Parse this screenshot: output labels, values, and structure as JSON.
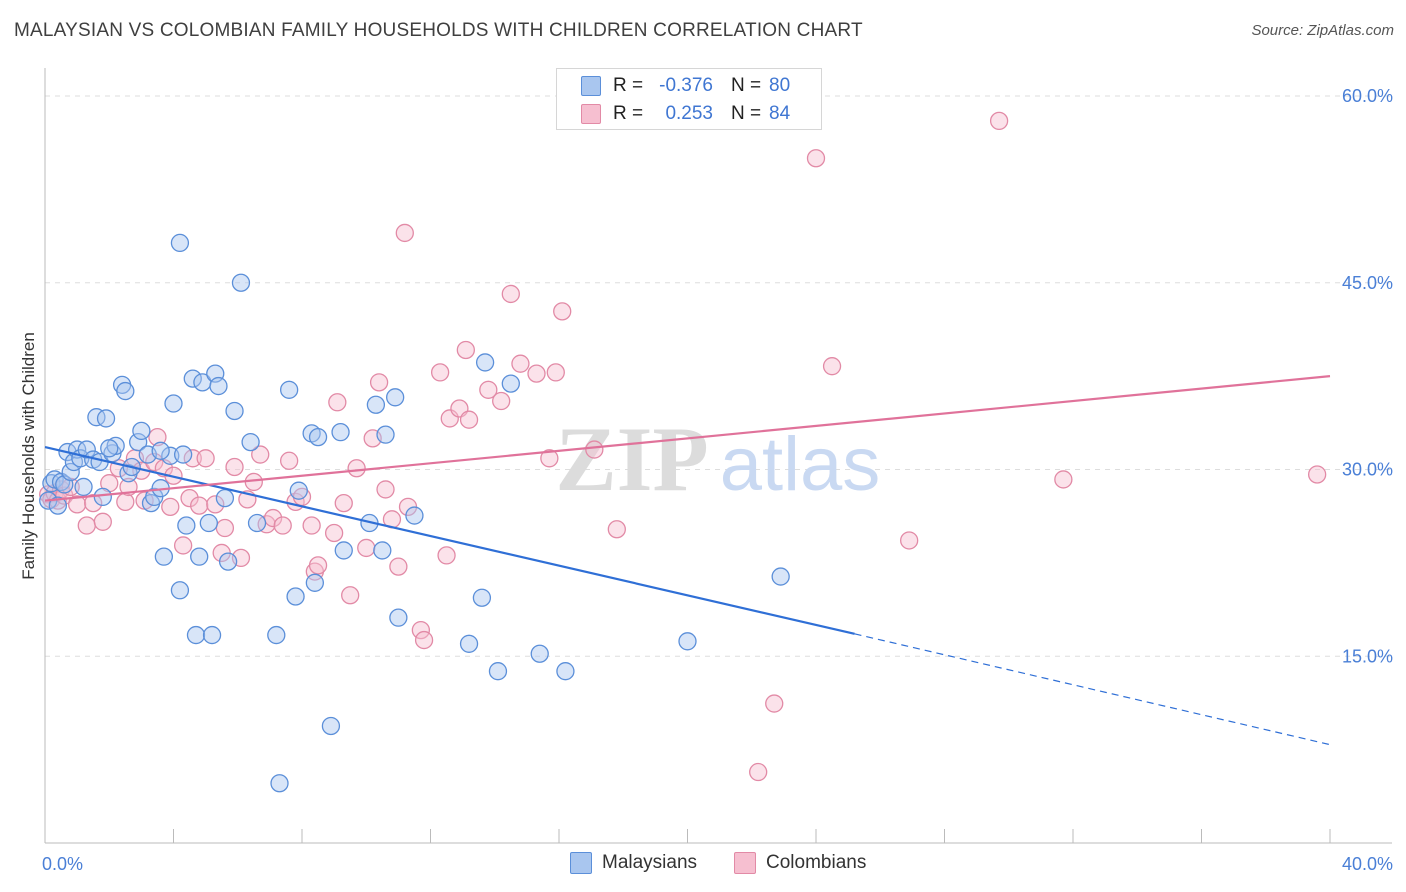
{
  "title": "MALAYSIAN VS COLOMBIAN FAMILY HOUSEHOLDS WITH CHILDREN CORRELATION CHART",
  "source": "Source: ZipAtlas.com",
  "watermark": {
    "zip": "ZIP",
    "atlas": "atlas"
  },
  "legend": {
    "rows": [
      {
        "r_label": "R =",
        "r_value": "-0.376",
        "n_label": "N =",
        "n_value": "80"
      },
      {
        "r_label": "R =",
        "r_value": "0.253",
        "n_label": "N =",
        "n_value": "84"
      }
    ]
  },
  "bottom_legend": {
    "malaysians": "Malaysians",
    "colombians": "Colombians"
  },
  "colors": {
    "malaysian_fill": "#a9c6ef",
    "malaysian_stroke": "#5b8fd9",
    "malaysian_line": "#2f6fd6",
    "colombian_fill": "#f6bfd0",
    "colombian_stroke": "#e28aa6",
    "colombian_line": "#e0729a",
    "tick_text": "#4a7fd6",
    "grid": "#dddddd"
  },
  "chart_data": {
    "type": "scatter",
    "title": "MALAYSIAN VS COLOMBIAN FAMILY HOUSEHOLDS WITH CHILDREN CORRELATION CHART",
    "xlabel": "",
    "ylabel": "Family Households with Children",
    "xlim": [
      0,
      40
    ],
    "ylim": [
      0,
      60
    ],
    "x_tick_labels": [
      "0.0%",
      "40.0%"
    ],
    "y_ticks": [
      15,
      30,
      45,
      60
    ],
    "y_tick_labels": [
      "15.0%",
      "30.0%",
      "45.0%",
      "60.0%"
    ],
    "grid": true,
    "legend_position": "top-center",
    "series": [
      {
        "name": "Malaysians",
        "r": -0.376,
        "n": 80,
        "trend": {
          "x0": 0,
          "y0": 31.8,
          "x1": 25.2,
          "y1": 16.8,
          "dash_to_x": 40,
          "dash_to_y": 7.9
        },
        "points": [
          [
            0.1,
            27.5
          ],
          [
            0.2,
            28.9
          ],
          [
            0.3,
            29.2
          ],
          [
            0.5,
            29.0
          ],
          [
            0.6,
            28.8
          ],
          [
            0.7,
            31.4
          ],
          [
            0.8,
            29.8
          ],
          [
            0.9,
            30.6
          ],
          [
            1.0,
            31.6
          ],
          [
            1.1,
            30.9
          ],
          [
            1.3,
            31.6
          ],
          [
            1.5,
            30.8
          ],
          [
            1.6,
            34.2
          ],
          [
            1.7,
            30.6
          ],
          [
            1.8,
            27.8
          ],
          [
            1.9,
            34.1
          ],
          [
            2.1,
            31.3
          ],
          [
            2.2,
            31.9
          ],
          [
            2.4,
            36.8
          ],
          [
            2.5,
            36.3
          ],
          [
            2.6,
            29.7
          ],
          [
            2.7,
            30.2
          ],
          [
            2.9,
            32.2
          ],
          [
            3.0,
            33.1
          ],
          [
            3.2,
            31.2
          ],
          [
            3.3,
            27.3
          ],
          [
            3.4,
            27.8
          ],
          [
            3.6,
            28.5
          ],
          [
            3.7,
            23.0
          ],
          [
            3.9,
            31.1
          ],
          [
            4.0,
            35.3
          ],
          [
            4.2,
            20.3
          ],
          [
            4.3,
            31.2
          ],
          [
            4.4,
            25.5
          ],
          [
            4.6,
            37.3
          ],
          [
            4.7,
            16.7
          ],
          [
            4.8,
            23.0
          ],
          [
            4.9,
            37.0
          ],
          [
            5.1,
            25.7
          ],
          [
            5.2,
            16.7
          ],
          [
            5.3,
            37.7
          ],
          [
            5.4,
            36.7
          ],
          [
            5.6,
            27.7
          ],
          [
            5.7,
            22.6
          ],
          [
            5.9,
            34.7
          ],
          [
            6.1,
            45.0
          ],
          [
            6.4,
            32.2
          ],
          [
            6.6,
            25.7
          ],
          [
            7.2,
            16.7
          ],
          [
            7.3,
            4.8
          ],
          [
            7.6,
            36.4
          ],
          [
            7.8,
            19.8
          ],
          [
            7.9,
            28.3
          ],
          [
            8.3,
            32.9
          ],
          [
            8.4,
            20.9
          ],
          [
            8.5,
            32.6
          ],
          [
            8.9,
            9.4
          ],
          [
            9.2,
            33.0
          ],
          [
            9.3,
            23.5
          ],
          [
            10.1,
            25.7
          ],
          [
            10.3,
            35.2
          ],
          [
            10.5,
            23.5
          ],
          [
            10.6,
            32.8
          ],
          [
            10.9,
            35.8
          ],
          [
            11.0,
            18.1
          ],
          [
            11.5,
            26.3
          ],
          [
            13.2,
            16.0
          ],
          [
            13.6,
            19.7
          ],
          [
            13.7,
            38.6
          ],
          [
            14.1,
            13.8
          ],
          [
            14.5,
            36.9
          ],
          [
            15.4,
            15.2
          ],
          [
            16.2,
            13.8
          ],
          [
            20.0,
            16.2
          ],
          [
            22.9,
            21.4
          ],
          [
            4.2,
            48.2
          ],
          [
            2.0,
            31.7
          ],
          [
            3.6,
            31.5
          ],
          [
            1.2,
            28.6
          ],
          [
            0.4,
            27.1
          ]
        ]
      },
      {
        "name": "Colombians",
        "r": 0.253,
        "n": 84,
        "trend": {
          "x0": 0,
          "y0": 27.5,
          "x1": 40,
          "y1": 37.5
        },
        "points": [
          [
            0.1,
            28.0
          ],
          [
            0.2,
            27.6
          ],
          [
            0.3,
            28.1
          ],
          [
            0.4,
            27.5
          ],
          [
            0.5,
            28.4
          ],
          [
            0.6,
            27.9
          ],
          [
            0.8,
            28.6
          ],
          [
            1.0,
            27.2
          ],
          [
            1.3,
            25.5
          ],
          [
            1.5,
            27.3
          ],
          [
            1.8,
            25.8
          ],
          [
            2.0,
            28.9
          ],
          [
            2.3,
            30.1
          ],
          [
            2.5,
            27.4
          ],
          [
            2.6,
            28.6
          ],
          [
            2.8,
            30.9
          ],
          [
            3.0,
            29.9
          ],
          [
            3.1,
            27.5
          ],
          [
            3.4,
            30.6
          ],
          [
            3.5,
            32.6
          ],
          [
            3.7,
            30.1
          ],
          [
            3.9,
            27.0
          ],
          [
            4.0,
            29.5
          ],
          [
            4.3,
            23.9
          ],
          [
            4.5,
            27.7
          ],
          [
            4.6,
            30.9
          ],
          [
            4.8,
            27.1
          ],
          [
            5.0,
            30.9
          ],
          [
            5.3,
            27.2
          ],
          [
            5.5,
            23.3
          ],
          [
            5.6,
            25.3
          ],
          [
            5.9,
            30.2
          ],
          [
            6.1,
            22.9
          ],
          [
            6.3,
            27.6
          ],
          [
            6.5,
            29.0
          ],
          [
            6.7,
            31.2
          ],
          [
            6.9,
            25.6
          ],
          [
            7.1,
            26.1
          ],
          [
            7.4,
            25.5
          ],
          [
            7.6,
            30.7
          ],
          [
            7.8,
            27.4
          ],
          [
            8.0,
            27.8
          ],
          [
            8.3,
            25.5
          ],
          [
            8.4,
            21.8
          ],
          [
            8.5,
            22.3
          ],
          [
            9.0,
            24.9
          ],
          [
            9.1,
            35.4
          ],
          [
            9.3,
            27.3
          ],
          [
            9.5,
            19.9
          ],
          [
            9.7,
            30.1
          ],
          [
            10.0,
            23.7
          ],
          [
            10.2,
            32.5
          ],
          [
            10.4,
            37.0
          ],
          [
            10.6,
            28.4
          ],
          [
            10.8,
            26.0
          ],
          [
            11.0,
            22.2
          ],
          [
            11.3,
            27.0
          ],
          [
            11.7,
            17.1
          ],
          [
            11.8,
            16.3
          ],
          [
            12.3,
            37.8
          ],
          [
            12.5,
            23.1
          ],
          [
            12.6,
            34.1
          ],
          [
            12.9,
            34.9
          ],
          [
            13.2,
            34.0
          ],
          [
            13.8,
            36.4
          ],
          [
            14.2,
            35.5
          ],
          [
            14.5,
            44.1
          ],
          [
            14.8,
            38.5
          ],
          [
            15.3,
            37.7
          ],
          [
            15.7,
            30.9
          ],
          [
            16.1,
            42.7
          ],
          [
            17.1,
            31.6
          ],
          [
            17.8,
            25.2
          ],
          [
            22.2,
            5.7
          ],
          [
            22.7,
            11.2
          ],
          [
            24.0,
            55.0
          ],
          [
            24.5,
            38.3
          ],
          [
            26.9,
            24.3
          ],
          [
            29.7,
            58.0
          ],
          [
            31.7,
            29.2
          ],
          [
            39.6,
            29.6
          ],
          [
            11.2,
            49.0
          ],
          [
            13.1,
            39.6
          ],
          [
            15.9,
            37.8
          ]
        ]
      }
    ]
  }
}
